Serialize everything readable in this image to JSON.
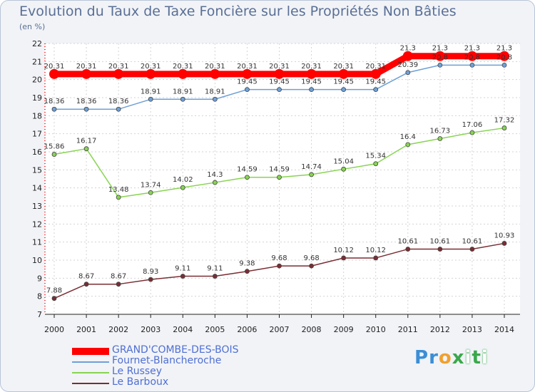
{
  "chart_data": {
    "type": "line",
    "title": "Evolution du Taux de Taxe Foncière sur les Propriétés Non Bâties",
    "ylabel": "(en %)",
    "xlabel": "",
    "x": [
      "2000",
      "2001",
      "2002",
      "2003",
      "2004",
      "2005",
      "2006",
      "2007",
      "2008",
      "2009",
      "2010",
      "2011",
      "2012",
      "2013",
      "2014"
    ],
    "ylim": [
      7,
      22
    ],
    "yticks": [
      7,
      8,
      9,
      10,
      11,
      12,
      13,
      14,
      15,
      16,
      17,
      18,
      19,
      20,
      21,
      22
    ],
    "grid": true,
    "legend": "bottom-left",
    "series": [
      {
        "name": "GRAND'COMBE-DES-BOIS",
        "color": "#ff0000",
        "label_color": "#4f6fd3",
        "width": 9,
        "marker": 7,
        "values": [
          20.31,
          20.31,
          20.31,
          20.31,
          20.31,
          20.31,
          20.31,
          20.31,
          20.31,
          20.31,
          20.31,
          21.3,
          21.3,
          21.3,
          21.3
        ],
        "labels": [
          "20.31",
          "20.31",
          "20.31",
          "20.31",
          "20.31",
          "20.31",
          "20.31",
          "20.31",
          "20.31",
          "20.31",
          "20.31",
          "21.3",
          "21.3",
          "21.3",
          "21.3"
        ]
      },
      {
        "name": "Fournet-Blancheroche",
        "color": "#6fa0d6",
        "label_color": "#4f6fd3",
        "width": 1.5,
        "marker": 3,
        "values": [
          18.36,
          18.36,
          18.36,
          18.91,
          18.91,
          18.91,
          19.45,
          19.45,
          19.45,
          19.45,
          19.45,
          20.39,
          20.8,
          20.8,
          20.8
        ],
        "labels": [
          "18.36",
          "18.36",
          "18.36",
          "18.91",
          "18.91",
          "18.91",
          "19.45",
          "19.45",
          "19.45",
          "19.45",
          "19.45",
          "20.39",
          "20.8",
          "20.8",
          "20.8"
        ]
      },
      {
        "name": "Le Russey",
        "color": "#88d452",
        "label_color": "#4f6fd3",
        "width": 1.5,
        "marker": 3,
        "values": [
          15.86,
          16.17,
          13.48,
          13.74,
          14.02,
          14.3,
          14.59,
          14.59,
          14.74,
          15.04,
          15.34,
          16.4,
          16.73,
          17.06,
          17.32
        ],
        "labels": [
          "15.86",
          "16.17",
          "13.48",
          "13.74",
          "14.02",
          "14.3",
          "14.59",
          "14.59",
          "14.74",
          "15.04",
          "15.34",
          "16.4",
          "16.73",
          "17.06",
          "17.32"
        ]
      },
      {
        "name": "Le Barboux",
        "color": "#7a2d33",
        "label_color": "#4f6fd3",
        "width": 1.5,
        "marker": 3,
        "values": [
          7.88,
          8.67,
          8.67,
          8.93,
          9.11,
          9.11,
          9.38,
          9.68,
          9.68,
          10.12,
          10.12,
          10.61,
          10.61,
          10.61,
          10.93
        ],
        "labels": [
          "7.88",
          "8.67",
          "8.67",
          "8.93",
          "9.11",
          "9.11",
          "9.38",
          "9.68",
          "9.68",
          "10.12",
          "10.12",
          "10.61",
          "10.61",
          "10.61",
          "10.93"
        ]
      }
    ]
  },
  "brand": {
    "letters": [
      "P",
      "r",
      "o",
      "x",
      "i",
      "t",
      "i"
    ],
    "colors": [
      "#3c8ed6",
      "#3c8ed6",
      "#f0a030",
      "#3aa84a",
      "#ffffff",
      "#3aa84a",
      "#ffffff"
    ]
  }
}
